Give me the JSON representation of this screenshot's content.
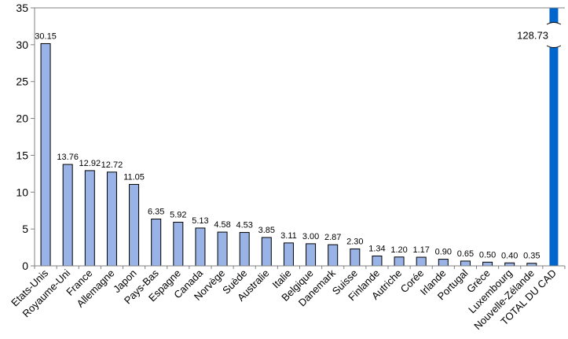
{
  "chart_data": {
    "type": "bar",
    "title": "",
    "xlabel": "",
    "ylabel": "",
    "ylim": [
      0,
      35
    ],
    "yticks": [
      0,
      5,
      10,
      15,
      20,
      25,
      30,
      35
    ],
    "grid": false,
    "legend": "none",
    "categories": [
      "Etats-Unis",
      "Royaume-Uni",
      "France",
      "Allemagne",
      "Japon",
      "Pays-Bas",
      "Espagne",
      "Canada",
      "Norvège",
      "Suède",
      "Australie",
      "Italie",
      "Belgique",
      "Danemark",
      "Suisse",
      "Finlande",
      "Autriche",
      "Corée",
      "Irlande",
      "Portugal",
      "Grèce",
      "Luxembourg",
      "Nouvelle-Zélande",
      "TOTAL DU CAD"
    ],
    "values": [
      30.15,
      13.76,
      12.92,
      12.72,
      11.05,
      6.35,
      5.92,
      5.13,
      4.58,
      4.53,
      3.85,
      3.11,
      3.0,
      2.87,
      2.3,
      1.34,
      1.2,
      1.17,
      0.9,
      0.65,
      0.5,
      0.4,
      0.35,
      128.73
    ],
    "value_labels": [
      "30.15",
      "13.76",
      "12.92",
      "12.72",
      "11.05",
      "6.35",
      "5.92",
      "5.13",
      "4.58",
      "4.53",
      "3.85",
      "3.11",
      "3.00",
      "2.87",
      "2.30",
      "1.34",
      "1.20",
      "1.17",
      "0.90",
      "0.65",
      "0.50",
      "0.40",
      "0.35",
      "128.73"
    ],
    "broken_bar": "TOTAL DU CAD",
    "colors": {
      "bar": "#99b3e6",
      "bar_total": "#0066cc",
      "axis": "#808080"
    }
  }
}
